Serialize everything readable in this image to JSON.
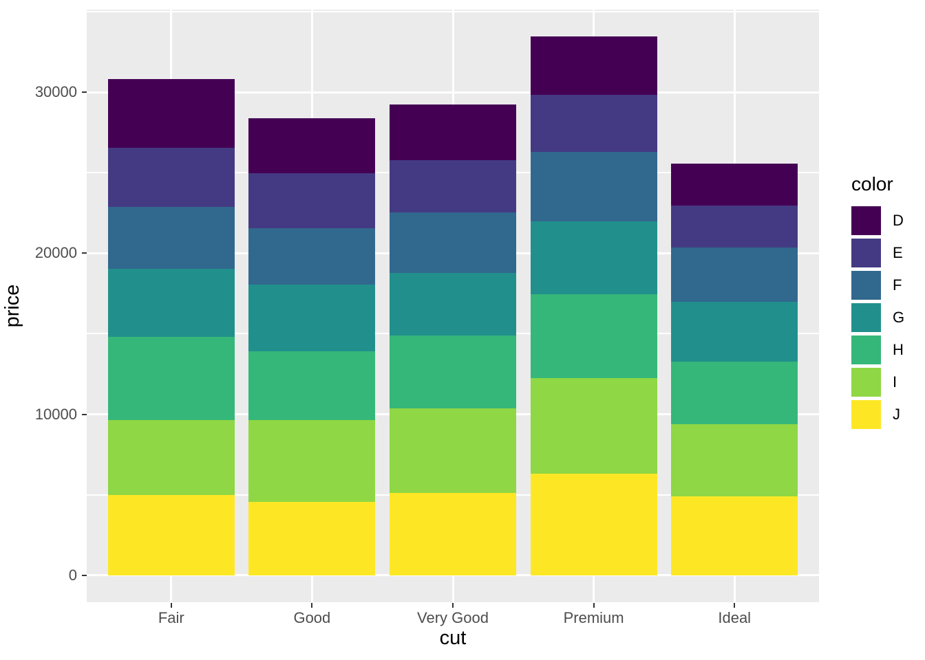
{
  "chart_data": {
    "type": "bar",
    "stacked": true,
    "xlabel": "cut",
    "ylabel": "price",
    "categories": [
      "Fair",
      "Good",
      "Very Good",
      "Premium",
      "Ideal"
    ],
    "series": [
      {
        "name": "D",
        "color": "#440154",
        "values": [
          4291,
          3405,
          3470,
          3631,
          2629
        ]
      },
      {
        "name": "E",
        "color": "#443A83",
        "values": [
          3682,
          3424,
          3215,
          3539,
          2598
        ]
      },
      {
        "name": "F",
        "color": "#31688E",
        "values": [
          3827,
          3496,
          3779,
          4325,
          3375
        ]
      },
      {
        "name": "G",
        "color": "#21908C",
        "values": [
          4239,
          4123,
          3873,
          4501,
          3721
        ]
      },
      {
        "name": "H",
        "color": "#35B779",
        "values": [
          5136,
          4276,
          4535,
          5217,
          3889
        ]
      },
      {
        "name": "I",
        "color": "#8FD744",
        "values": [
          4685,
          5079,
          5256,
          5946,
          4452
        ]
      },
      {
        "name": "J",
        "color": "#FDE725",
        "values": [
          4976,
          4574,
          5104,
          6295,
          4918
        ]
      }
    ],
    "stack_order_bottom_to_top": [
      "J",
      "I",
      "H",
      "G",
      "F",
      "E",
      "D"
    ],
    "totals": [
      30836,
      28377,
      29232,
      33454,
      25582
    ],
    "y_ticks": [
      0,
      10000,
      20000,
      30000
    ],
    "y_tick_labels": [
      "0",
      "10000",
      "20000",
      "30000"
    ],
    "y_minor_ticks": [
      5000,
      15000,
      25000,
      35000
    ],
    "ylim": [
      -1673,
      35127
    ],
    "grid": true,
    "legend": {
      "title": "color",
      "position": "right",
      "entries": [
        "D",
        "E",
        "F",
        "G",
        "H",
        "I",
        "J"
      ]
    },
    "style": {
      "panel_background": "#EBEBEB",
      "gridline_color": "#ffffff",
      "tick_label_color": "#4D4D4D",
      "axis_title_color": "#000000",
      "tick_mark_color": "#333333"
    }
  }
}
